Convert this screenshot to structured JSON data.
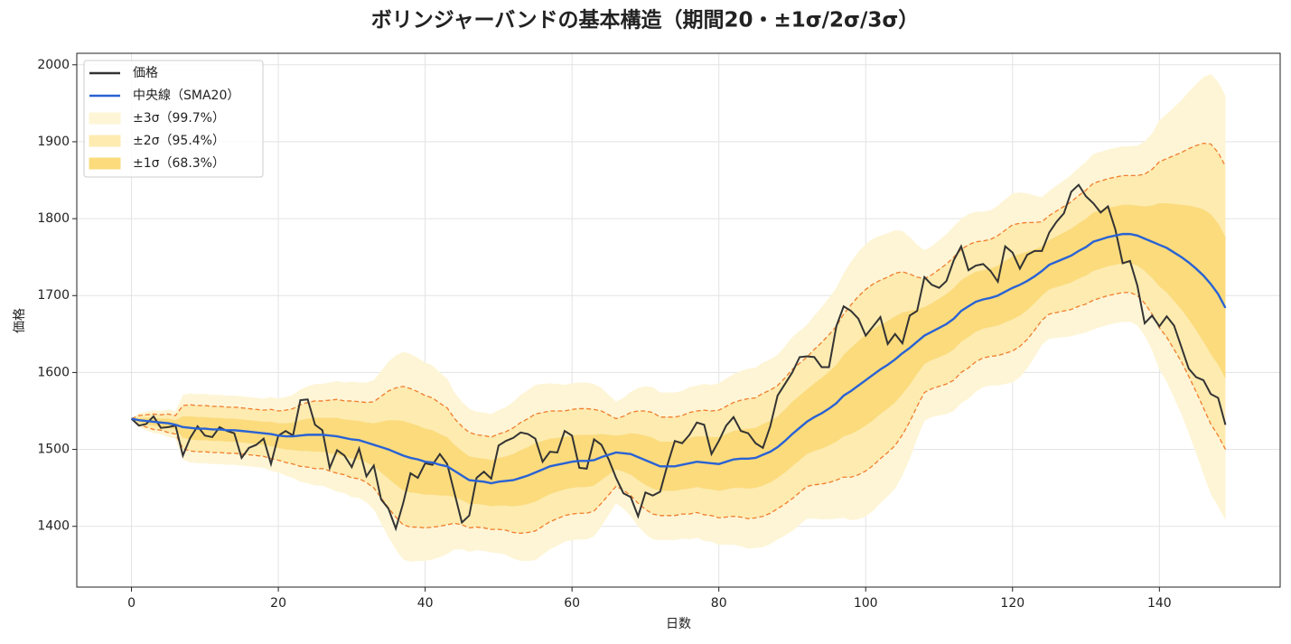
{
  "chart_data": {
    "type": "line",
    "title": "ボリンジャーバンドの基本構造（期間20・±1σ/2σ/3σ）",
    "x_label": "日数",
    "y_label": "価格",
    "xlim": [
      -7.45,
      156.45
    ],
    "ylim": [
      1321,
      2015
    ],
    "xticks": [
      0,
      20,
      40,
      60,
      80,
      100,
      120,
      140
    ],
    "yticks": [
      1400,
      1500,
      1600,
      1700,
      1800,
      1900,
      2000
    ],
    "grid": true,
    "legend": "upper left",
    "x": [
      0,
      1,
      2,
      3,
      4,
      5,
      6,
      7,
      8,
      9,
      10,
      11,
      12,
      13,
      14,
      15,
      16,
      17,
      18,
      19,
      20,
      21,
      22,
      23,
      24,
      25,
      26,
      27,
      28,
      29,
      30,
      31,
      32,
      33,
      34,
      35,
      36,
      37,
      38,
      39,
      40,
      41,
      42,
      43,
      44,
      45,
      46,
      47,
      48,
      49,
      50,
      51,
      52,
      53,
      54,
      55,
      56,
      57,
      58,
      59,
      60,
      61,
      62,
      63,
      64,
      65,
      66,
      67,
      68,
      69,
      70,
      71,
      72,
      73,
      74,
      75,
      76,
      77,
      78,
      79,
      80,
      81,
      82,
      83,
      84,
      85,
      86,
      87,
      88,
      89,
      90,
      91,
      92,
      93,
      94,
      95,
      96,
      97,
      98,
      99,
      100,
      101,
      102,
      103,
      104,
      105,
      106,
      107,
      108,
      109,
      110,
      111,
      112,
      113,
      114,
      115,
      116,
      117,
      118,
      119,
      120,
      121,
      122,
      123,
      124,
      125,
      126,
      127,
      128,
      129,
      130,
      131,
      132,
      133,
      134,
      135,
      136,
      137,
      138,
      139,
      140,
      141,
      142,
      143,
      144,
      145,
      146,
      147,
      148,
      149
    ],
    "series": [
      {
        "name": "価格",
        "color": "#333333",
        "values": [
          1540,
          1531,
          1533,
          1543,
          1528,
          1529,
          1531,
          1492,
          1515,
          1530,
          1518,
          1516,
          1529,
          1524,
          1521,
          1489,
          1502,
          1506,
          1514,
          1481,
          1518,
          1524,
          1518,
          1564,
          1565,
          1532,
          1525,
          1476,
          1499,
          1492,
          1477,
          1501,
          1465,
          1479,
          1435,
          1423,
          1397,
          1430,
          1469,
          1463,
          1482,
          1480,
          1494,
          1481,
          1443,
          1405,
          1414,
          1463,
          1471,
          1462,
          1505,
          1511,
          1515,
          1522,
          1520,
          1514,
          1484,
          1497,
          1496,
          1524,
          1518,
          1476,
          1475,
          1513,
          1506,
          1487,
          1463,
          1443,
          1438,
          1413,
          1444,
          1440,
          1445,
          1480,
          1511,
          1508,
          1519,
          1535,
          1532,
          1494,
          1511,
          1531,
          1542,
          1524,
          1521,
          1508,
          1502,
          1530,
          1570,
          1585,
          1600,
          1620,
          1621,
          1620,
          1607,
          1607,
          1660,
          1686,
          1680,
          1670,
          1648,
          1660,
          1672,
          1637,
          1650,
          1638,
          1674,
          1680,
          1724,
          1714,
          1710,
          1719,
          1746,
          1764,
          1733,
          1739,
          1741,
          1732,
          1718,
          1764,
          1756,
          1735,
          1753,
          1758,
          1758,
          1782,
          1796,
          1807,
          1835,
          1844,
          1829,
          1820,
          1808,
          1816,
          1786,
          1742,
          1745,
          1713,
          1664,
          1674,
          1660,
          1673,
          1661,
          1633,
          1605,
          1594,
          1590,
          1572,
          1567,
          1532
        ]
      },
      {
        "name": "中央線（SMA20）",
        "color": "#2962d4",
        "values": [
          1540,
          1538,
          1537,
          1536,
          1535,
          1534,
          1532,
          1529,
          1528,
          1527,
          1527,
          1526,
          1526,
          1525,
          1525,
          1524,
          1523,
          1522,
          1521,
          1520,
          1518,
          1517,
          1517,
          1518,
          1519,
          1519,
          1519,
          1518,
          1517,
          1515,
          1513,
          1512,
          1509,
          1506,
          1503,
          1500,
          1496,
          1492,
          1489,
          1487,
          1484,
          1483,
          1480,
          1478,
          1472,
          1466,
          1460,
          1459,
          1458,
          1456,
          1458,
          1459,
          1460,
          1463,
          1466,
          1470,
          1474,
          1478,
          1480,
          1482,
          1484,
          1485,
          1485,
          1486,
          1490,
          1493,
          1496,
          1495,
          1494,
          1490,
          1486,
          1482,
          1478,
          1478,
          1478,
          1480,
          1482,
          1484,
          1483,
          1482,
          1481,
          1484,
          1487,
          1488,
          1488,
          1489,
          1493,
          1497,
          1503,
          1511,
          1520,
          1528,
          1536,
          1542,
          1547,
          1553,
          1560,
          1570,
          1576,
          1583,
          1590,
          1597,
          1604,
          1610,
          1617,
          1625,
          1632,
          1640,
          1648,
          1653,
          1658,
          1663,
          1670,
          1680,
          1686,
          1692,
          1695,
          1697,
          1700,
          1705,
          1710,
          1714,
          1719,
          1725,
          1732,
          1740,
          1744,
          1748,
          1752,
          1758,
          1763,
          1770,
          1773,
          1776,
          1778,
          1780,
          1780,
          1778,
          1774,
          1770,
          1766,
          1762,
          1756,
          1750,
          1743,
          1735,
          1726,
          1715,
          1702,
          1684
        ]
      }
    ],
    "sigma": [
      0,
      3,
      4,
      5,
      5,
      6,
      6,
      14,
      15,
      15,
      15,
      15,
      15,
      15,
      15,
      15,
      15,
      15,
      15,
      16,
      16,
      17,
      18,
      20,
      21,
      22,
      22,
      23,
      24,
      24,
      25,
      25,
      26,
      28,
      33,
      38,
      42,
      45,
      45,
      44,
      43,
      42,
      40,
      38,
      34,
      32,
      31,
      30,
      30,
      30,
      31,
      32,
      34,
      36,
      37,
      38,
      37,
      36,
      35,
      34,
      34,
      34,
      34,
      33,
      30,
      26,
      22,
      24,
      27,
      30,
      32,
      33,
      32,
      32,
      32,
      32,
      33,
      33,
      34,
      34,
      35,
      36,
      37,
      38,
      39,
      39,
      40,
      40,
      40,
      41,
      42,
      42,
      42,
      44,
      46,
      48,
      50,
      53,
      56,
      58,
      59,
      59,
      58,
      57,
      56,
      53,
      48,
      42,
      37,
      37,
      38,
      39,
      40,
      40,
      40,
      39,
      38,
      38,
      39,
      40,
      41,
      40,
      38,
      35,
      32,
      32,
      33,
      34,
      35,
      36,
      37,
      38,
      38,
      38,
      38,
      38,
      38,
      39,
      42,
      47,
      54,
      58,
      63,
      68,
      74,
      80,
      86,
      91,
      92,
      92
    ],
    "bands": [
      {
        "name": "±3σ（99.7%）",
        "multiplier": 3,
        "color": "#fef5d6"
      },
      {
        "name": "±2σ（95.4%）",
        "multiplier": 2,
        "color": "#fdebb0",
        "edge_color": "#f07d2c",
        "dashed": true
      },
      {
        "name": "±1σ（68.3%）",
        "multiplier": 1,
        "color": "#fbdb7c"
      }
    ]
  }
}
